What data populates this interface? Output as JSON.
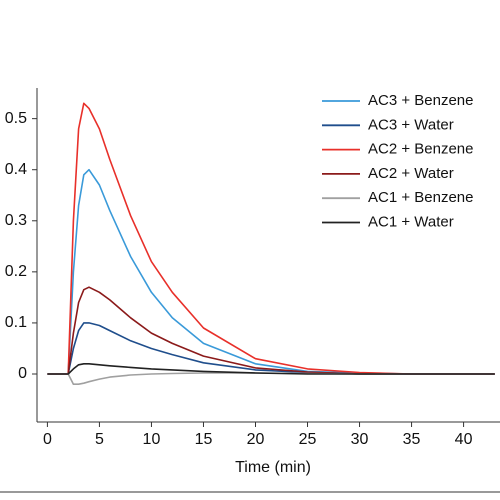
{
  "chart_data": {
    "type": "line",
    "xlabel": "Time (min)",
    "x": [
      0,
      2,
      2.5,
      3,
      3.5,
      4,
      5,
      6,
      8,
      10,
      12,
      15,
      20,
      25,
      30,
      35,
      40,
      43
    ],
    "series": [
      {
        "name": "AC3 + Benzene",
        "color": "#3a9ad9",
        "values": [
          0,
          0,
          0.2,
          0.33,
          0.39,
          0.4,
          0.37,
          0.32,
          0.23,
          0.16,
          0.11,
          0.06,
          0.02,
          0.005,
          0.002,
          0,
          0,
          0
        ]
      },
      {
        "name": "AC3 + Water",
        "color": "#1f4e8c",
        "values": [
          0,
          0,
          0.05,
          0.085,
          0.1,
          0.1,
          0.095,
          0.085,
          0.065,
          0.05,
          0.038,
          0.022,
          0.008,
          0.003,
          0,
          0,
          0,
          0
        ]
      },
      {
        "name": "AC2 + Benzene",
        "color": "#e8302a",
        "values": [
          0,
          0,
          0.3,
          0.48,
          0.53,
          0.52,
          0.48,
          0.42,
          0.31,
          0.22,
          0.16,
          0.09,
          0.03,
          0.01,
          0.003,
          0,
          0,
          0
        ]
      },
      {
        "name": "AC2 + Water",
        "color": "#8b1a1a",
        "values": [
          0,
          0,
          0.08,
          0.14,
          0.165,
          0.17,
          0.16,
          0.145,
          0.11,
          0.08,
          0.06,
          0.035,
          0.012,
          0.004,
          0,
          0,
          0,
          0
        ]
      },
      {
        "name": "AC1 + Benzene",
        "color": "#a0a0a0",
        "values": [
          0,
          0,
          -0.02,
          -0.02,
          -0.018,
          -0.015,
          -0.01,
          -0.006,
          -0.002,
          0,
          0.001,
          0.002,
          0.002,
          0.001,
          0,
          0,
          0,
          0
        ]
      },
      {
        "name": "AC1 + Water",
        "color": "#222222",
        "values": [
          0,
          0,
          0.01,
          0.018,
          0.02,
          0.02,
          0.018,
          0.016,
          0.013,
          0.01,
          0.008,
          0.005,
          0.002,
          0,
          0,
          0,
          0,
          0
        ]
      }
    ],
    "xlim": [
      -1,
      43.5
    ],
    "xticks": [
      0,
      5,
      10,
      15,
      20,
      25,
      30,
      35,
      40
    ],
    "ylim": [
      -0.094,
      0.56
    ],
    "yticks": [
      0,
      0.1,
      0.2,
      0.3,
      0.4,
      0.5
    ],
    "legend": "top-right"
  }
}
